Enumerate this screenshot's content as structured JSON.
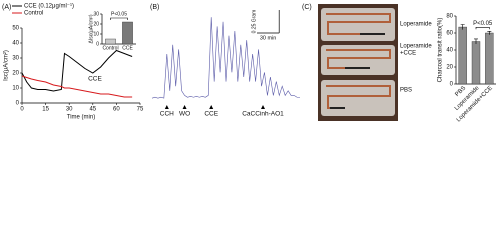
{
  "panel_labels": [
    "(A)",
    "(B)",
    "(C)"
  ],
  "photo": {
    "labels": [
      "Loperamide",
      "Loperamide",
      "+CCE",
      "PBS"
    ]
  },
  "chart_data": [
    {
      "type": "line",
      "ylabel": "Isc(μA/cm²)",
      "xlabel": "Time (min)",
      "x": [
        0,
        3,
        6,
        10,
        15,
        20,
        25,
        27,
        30,
        35,
        40,
        45,
        50,
        55,
        60,
        65,
        70
      ],
      "series": [
        {
          "name": "CCE (0.12μg/ml⁻¹)",
          "color": "#000000",
          "values": [
            20,
            14,
            10,
            9,
            9,
            8,
            9,
            33,
            31,
            27,
            23,
            20,
            24,
            30,
            35,
            33,
            31
          ]
        },
        {
          "name": "Control",
          "color": "#d7191c",
          "values": [
            18,
            17,
            16,
            15,
            14,
            12,
            11,
            10,
            10,
            9,
            8,
            7,
            6,
            6,
            5,
            4,
            4
          ]
        }
      ],
      "xlim": [
        0,
        75
      ],
      "xticks": [
        0,
        15,
        30,
        45,
        60,
        75
      ],
      "ylim": [
        0,
        50
      ],
      "yticks": [
        0,
        10,
        20,
        30,
        40,
        50
      ],
      "annotations": [
        {
          "text": "CCE",
          "x": 42,
          "y": 16
        }
      ]
    },
    {
      "type": "bar",
      "ylabel": "ΔIsc(μA/cm²)",
      "categories": [
        "Control",
        "CCE"
      ],
      "values": [
        5,
        22
      ],
      "colors": [
        "#c8c8c8",
        "#7a7a7a"
      ],
      "ylim": [
        0,
        30
      ],
      "yticks": [
        0,
        10,
        20,
        30
      ],
      "significance": {
        "label": "P<0.05",
        "from": 0,
        "to": 1
      }
    },
    {
      "type": "line",
      "x": [
        0,
        4,
        8,
        12,
        16,
        20,
        24,
        28,
        32,
        36,
        40,
        44,
        48,
        52,
        56,
        60,
        64,
        68,
        72,
        76,
        80,
        84,
        88,
        92,
        96,
        100,
        104,
        108,
        112,
        116,
        120,
        124,
        128,
        132,
        136,
        140,
        144,
        148,
        152,
        156,
        160,
        164,
        168,
        172,
        176,
        180,
        184,
        188,
        192,
        196,
        200
      ],
      "series": [
        {
          "color": "#5a5aa8",
          "values": [
            0.02,
            0.03,
            0.02,
            0.03,
            0.02,
            0.5,
            0.1,
            0.6,
            0.15,
            0.55,
            0.1,
            0.05,
            0.03,
            0.04,
            0.03,
            0.04,
            0.03,
            0.04,
            0.03,
            0.05,
            0.9,
            0.2,
            0.8,
            0.3,
            0.85,
            0.2,
            0.7,
            0.3,
            0.75,
            0.2,
            0.6,
            0.25,
            0.65,
            0.2,
            0.5,
            0.2,
            0.55,
            0.15,
            0.3,
            0.05,
            0.25,
            0.05,
            0.2,
            0.05,
            0.15,
            0.05,
            0.1,
            0.05,
            0.05,
            0.03,
            0.03
          ]
        }
      ],
      "xlim": [
        0,
        200
      ],
      "ylim": [
        0,
        1
      ],
      "scalebar": {
        "y": {
          "value": 0.25,
          "label": "0.25 Gram"
        },
        "x": {
          "value": 30,
          "label": "30 min"
        }
      },
      "events": [
        {
          "x": 20,
          "label": "CCH"
        },
        {
          "x": 44,
          "label": "WO"
        },
        {
          "x": 80,
          "label": "CCE"
        },
        {
          "x": 150,
          "label": "CaCCinh-AO1"
        }
      ]
    },
    {
      "type": "bar",
      "ylabel": "Charcoal transit ratio(%)",
      "categories": [
        "PBS",
        "Loperamide",
        "Loperamide+CCE"
      ],
      "values": [
        67,
        50,
        60
      ],
      "errors": [
        3,
        3,
        2
      ],
      "colors": [
        "#8c8c8c",
        "#8c8c8c",
        "#8c8c8c"
      ],
      "ylim": [
        0,
        80
      ],
      "yticks": [
        0,
        20,
        40,
        60,
        80
      ],
      "significance": {
        "label": "P<0.05",
        "from": 1,
        "to": 2
      }
    }
  ]
}
